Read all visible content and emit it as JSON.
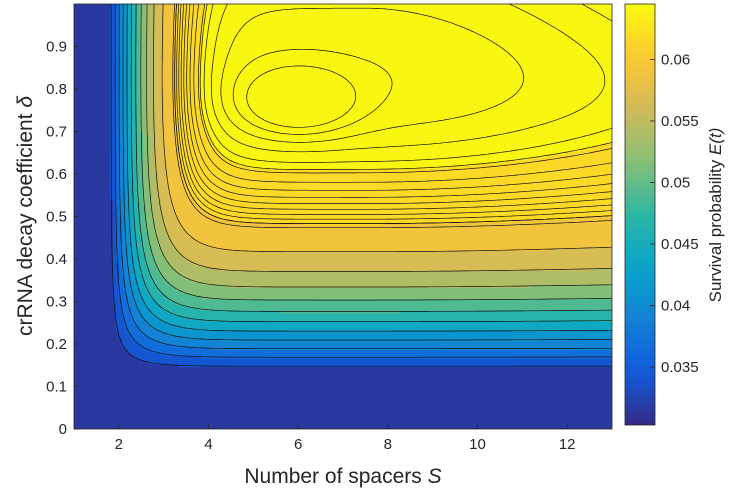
{
  "chart_data": {
    "type": "heatmap",
    "subtype": "filled-contour",
    "title": "",
    "xlabel": {
      "text": "Number of spacers ",
      "symbol": "S"
    },
    "ylabel": {
      "text": "crRNA decay coefficient ",
      "symbol": "δ"
    },
    "colorbar_label": {
      "text": "Survival probability ",
      "symbol": "E(t)"
    },
    "xlim": [
      1,
      13
    ],
    "ylim": [
      0,
      1
    ],
    "x_ticks": [
      2,
      4,
      6,
      8,
      10,
      12
    ],
    "x_tick_labels": [
      "2",
      "4",
      "6",
      "8",
      "10",
      "12"
    ],
    "y_ticks": [
      0,
      0.1,
      0.2,
      0.3,
      0.4,
      0.5,
      0.6,
      0.7,
      0.8,
      0.9
    ],
    "y_tick_labels": [
      "0",
      "0.1",
      "0.2",
      "0.3",
      "0.4",
      "0.5",
      "0.6",
      "0.7",
      "0.8",
      "0.9"
    ],
    "colorbar_range": [
      0.0303,
      0.0645
    ],
    "colorbar_ticks": [
      0.035,
      0.04,
      0.045,
      0.05,
      0.055,
      0.06
    ],
    "colorbar_tick_labels": [
      "0.035",
      "0.04",
      "0.045",
      "0.05",
      "0.055",
      "0.06"
    ],
    "colormap": "parula",
    "colormap_stops": [
      "#352a87",
      "#0f5cdd",
      "#1481d6",
      "#06a4ca",
      "#2eb7a4",
      "#87bf77",
      "#d1bb59",
      "#fec832",
      "#f9fb0e"
    ],
    "peak": {
      "S": 6,
      "delta": 0.77,
      "value": 0.0645
    },
    "grid": false,
    "legend": "none"
  }
}
